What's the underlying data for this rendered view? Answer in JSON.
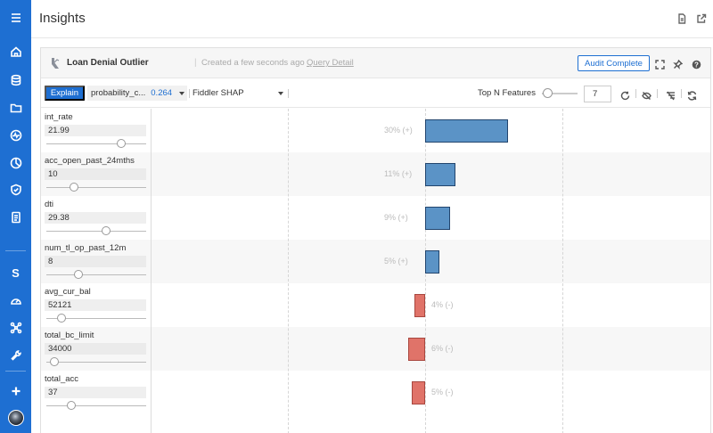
{
  "page": {
    "title": "Insights"
  },
  "sidebar": {
    "items": [
      {
        "icon": "menu-icon"
      },
      {
        "icon": "home-icon"
      },
      {
        "icon": "database-icon"
      },
      {
        "icon": "folder-icon"
      },
      {
        "icon": "activity-icon"
      },
      {
        "icon": "pie-chart-icon"
      },
      {
        "icon": "shield-icon"
      },
      {
        "icon": "document-icon"
      },
      {
        "icon": "letter-s-icon",
        "label": "S"
      },
      {
        "icon": "gauge-icon"
      },
      {
        "icon": "network-icon"
      },
      {
        "icon": "tool-icon"
      },
      {
        "icon": "plus-icon"
      }
    ],
    "accent": "#1e6fd2"
  },
  "card": {
    "title": "Loan Denial Outlier",
    "separator": "|",
    "created": "Created a few seconds ago",
    "query_link": "Query Detail",
    "audit_label": "Audit Complete"
  },
  "toolbar": {
    "explain_label": "Explain",
    "output_name": "probability_c...",
    "output_value": "0.264",
    "method": "Fiddler SHAP",
    "topn_label": "Top N Features",
    "topn_value": "7"
  },
  "features": [
    {
      "name": "int_rate",
      "value": "21.99",
      "slider": 0.75
    },
    {
      "name": "acc_open_past_24mths",
      "value": "10",
      "slider": 0.28
    },
    {
      "name": "dti",
      "value": "29.38",
      "slider": 0.6
    },
    {
      "name": "num_tl_op_past_12m",
      "value": "8",
      "slider": 0.32
    },
    {
      "name": "avg_cur_bal",
      "value": "52121",
      "slider": 0.15
    },
    {
      "name": "total_bc_limit",
      "value": "34000",
      "slider": 0.08
    },
    {
      "name": "total_acc",
      "value": "37",
      "slider": 0.25
    }
  ],
  "chart_data": {
    "type": "bar",
    "orientation": "horizontal",
    "categories": [
      "int_rate",
      "acc_open_past_24mths",
      "dti",
      "num_tl_op_past_12m",
      "avg_cur_bal",
      "total_bc_limit",
      "total_acc"
    ],
    "values": [
      30,
      11,
      9,
      5,
      -4,
      -6,
      -5
    ],
    "labels": [
      "30% (+)",
      "11% (+)",
      "9% (+)",
      "5% (+)",
      "4% (-)",
      "6% (-)",
      "5% (-)"
    ],
    "colors": {
      "positive": "#5b93c6",
      "negative": "#e07369"
    },
    "grid": true
  }
}
